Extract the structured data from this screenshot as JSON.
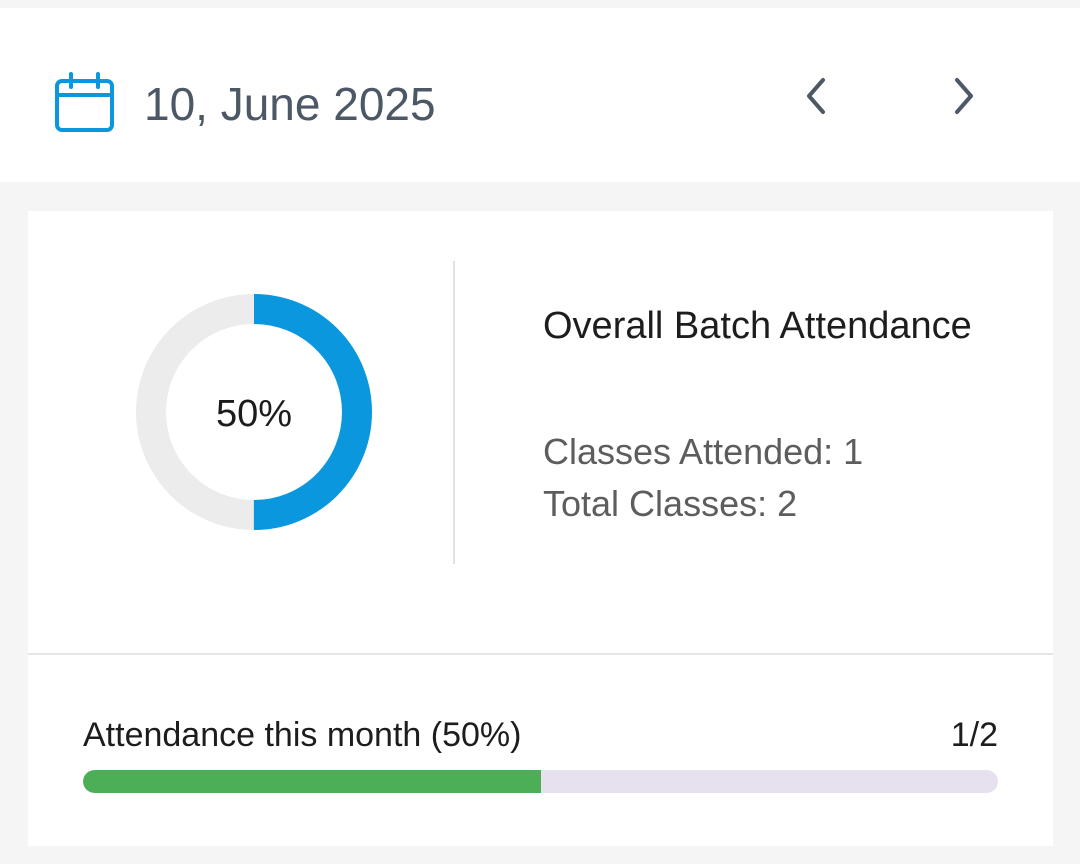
{
  "date_bar": {
    "date_text": "10, June 2025",
    "calendar_icon": "calendar-icon",
    "prev_icon": "chevron-left-icon",
    "next_icon": "chevron-right-icon"
  },
  "attendance": {
    "percent_label": "50%",
    "percent_value": 50,
    "title": "Overall Batch Attendance",
    "classes_attended": "Classes Attended: 1",
    "total_classes": "Total Classes: 2"
  },
  "month": {
    "label": "Attendance this month (50%)",
    "count": "1/2",
    "progress_fraction": 0.5
  },
  "colors": {
    "accent_blue": "#0a97dd",
    "donut_track": "#ececec",
    "progress_green": "#4caf58",
    "progress_track": "#e7e0ee"
  }
}
